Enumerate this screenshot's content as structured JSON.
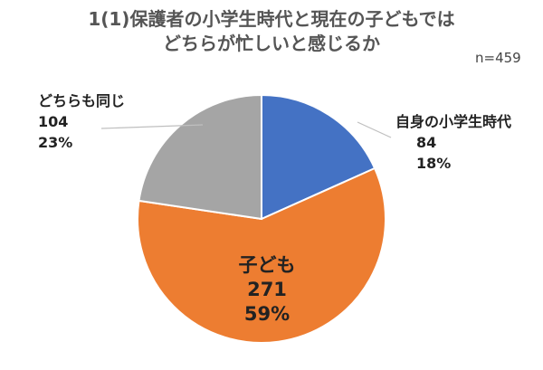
{
  "chart_data": {
    "type": "pie",
    "title": [
      "1(1)保護者の小学生時代と現在の子どもでは",
      "どちらが忙しいと感じるか"
    ],
    "annotation": "n=459",
    "start_angle_deg": 0,
    "direction": "clockwise",
    "slices": [
      {
        "label": "自身の小学生時代",
        "value": 84,
        "percent": "18%",
        "color": "#4472C4"
      },
      {
        "label": "子ども",
        "value": 271,
        "percent": "59%",
        "color": "#ED7D31"
      },
      {
        "label": "どちらも同じ",
        "value": 104,
        "percent": "23%",
        "color": "#A5A5A5"
      }
    ]
  }
}
